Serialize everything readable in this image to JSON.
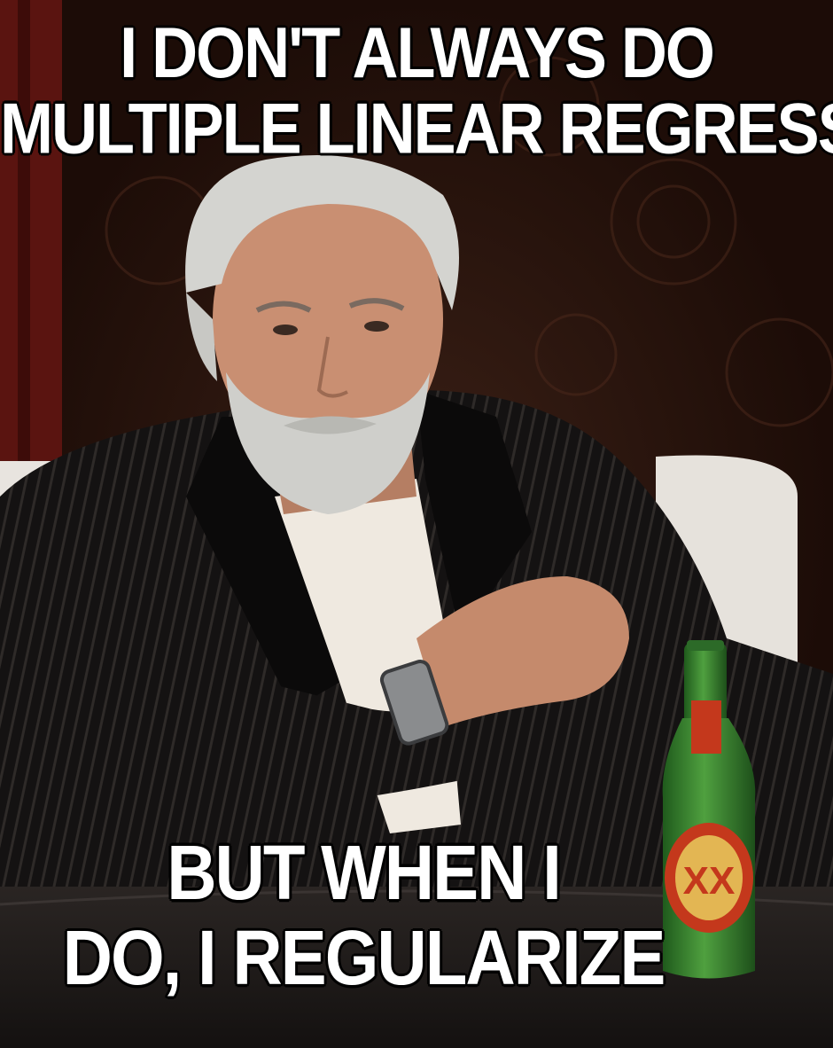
{
  "meme": {
    "top_caption": [
      "I DON'T ALWAYS DO",
      "MULTIPLE LINEAR REGRESSION"
    ],
    "bottom_caption": [
      "BUT WHEN I",
      "DO, I REGULARIZE"
    ]
  },
  "bottle": {
    "label_text": "XX"
  },
  "colors": {
    "background": "#24110b",
    "curtain": "#5a1410",
    "jacket": "#141212",
    "shirt": "#efe9e0",
    "skin": "#c98f72",
    "hair": "#d4d4d0",
    "bottle_glass": "#2f7a2a",
    "bottle_label": "#c4381c",
    "table": "#1e1a18",
    "couch": "#e8e4df"
  }
}
